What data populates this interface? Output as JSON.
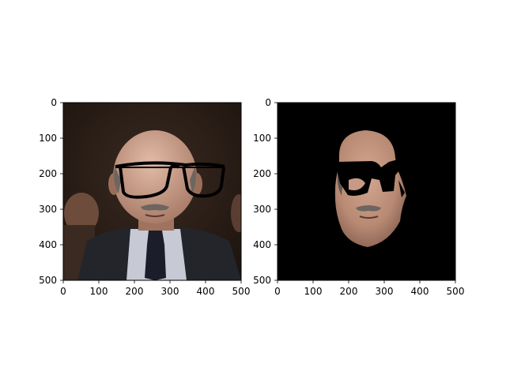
{
  "chart_data": [
    {
      "type": "image",
      "panel": "left",
      "title": "",
      "xlabel": "",
      "ylabel": "",
      "xlim": [
        0,
        500
      ],
      "ylim": [
        500,
        0
      ],
      "xticks": [
        0,
        100,
        200,
        300,
        400,
        500
      ],
      "yticks": [
        0,
        100,
        200,
        300,
        400,
        500
      ],
      "xtick_labels": [
        "0",
        "100",
        "200",
        "300",
        "400",
        "500"
      ],
      "ytick_labels": [
        "0",
        "100",
        "200",
        "300",
        "400",
        "500"
      ],
      "content": "photo of a man in a dark suit and tie with black eyeglass frames overlaid"
    },
    {
      "type": "image",
      "panel": "right",
      "title": "",
      "xlabel": "",
      "ylabel": "",
      "xlim": [
        0,
        500
      ],
      "ylim": [
        500,
        0
      ],
      "xticks": [
        0,
        100,
        200,
        300,
        400,
        500
      ],
      "yticks": [
        0,
        100,
        200,
        300,
        400,
        500
      ],
      "xtick_labels": [
        "0",
        "100",
        "200",
        "300",
        "400",
        "500"
      ],
      "ytick_labels": [
        "0",
        "100",
        "200",
        "300",
        "400",
        "500"
      ],
      "content": "face region segmented from the photo on a black background"
    }
  ],
  "colors": {
    "background": "#ffffff",
    "axis": "#000000",
    "mask_background": "#000000",
    "skin": "#b88a74",
    "suit": "#24252b",
    "photo_bg": "#2a1d16"
  }
}
